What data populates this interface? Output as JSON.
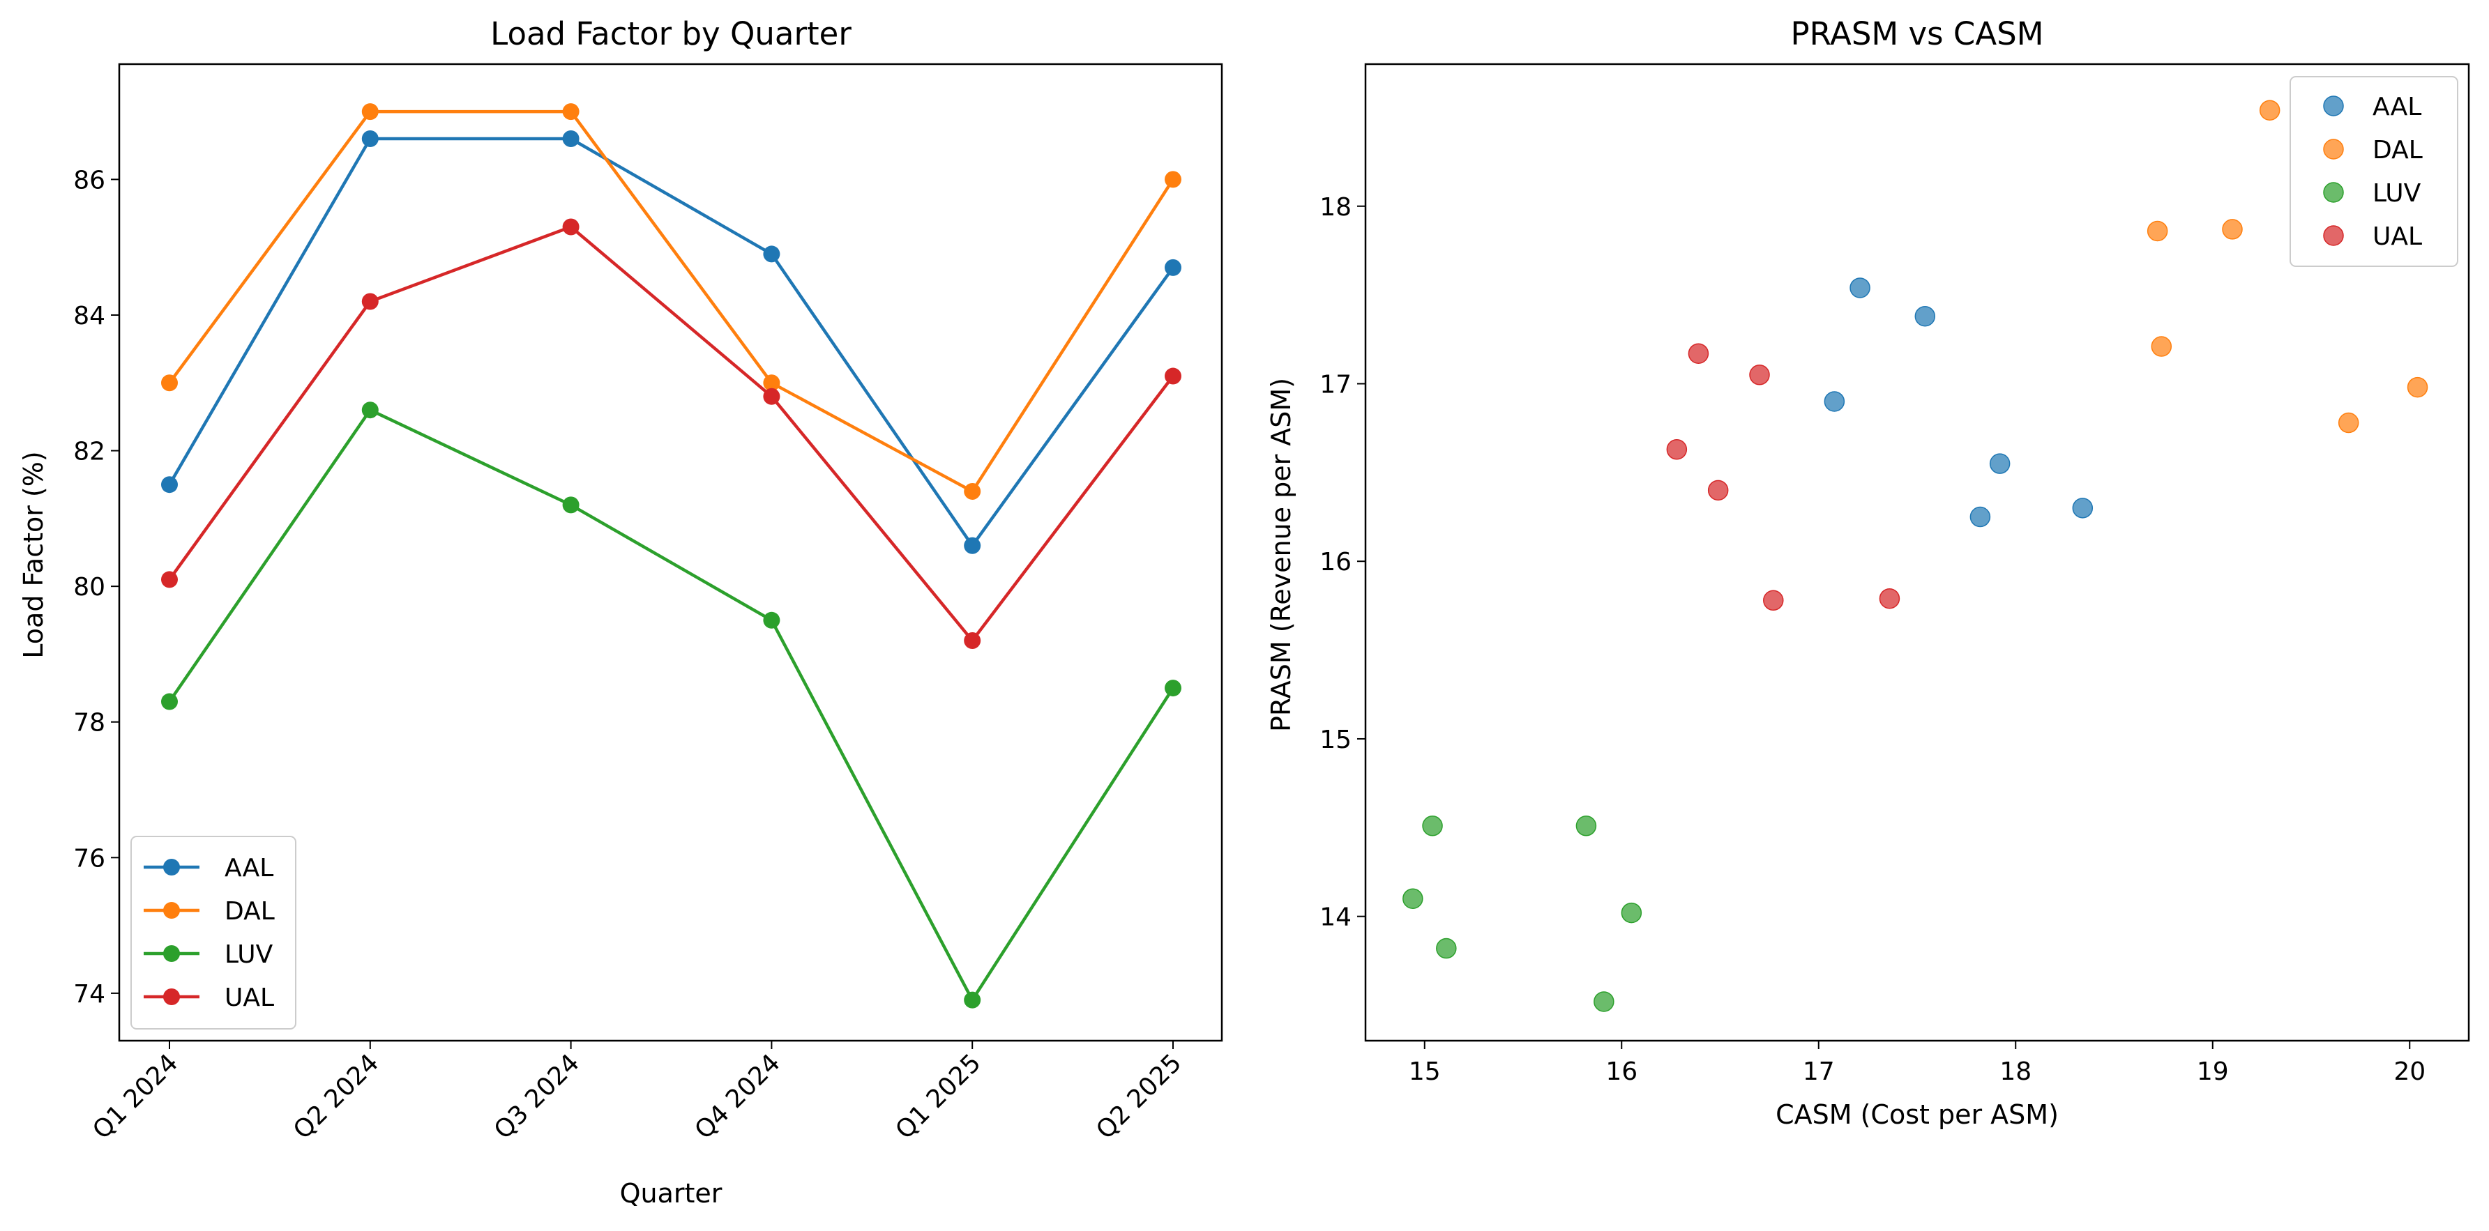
{
  "chart_data": [
    {
      "type": "line",
      "title": "Load Factor by Quarter",
      "xlabel": "Quarter",
      "ylabel": "Load Factor (%)",
      "categories": [
        "Q1 2024",
        "Q2 2024",
        "Q3 2024",
        "Q4 2024",
        "Q1 2025",
        "Q2 2025"
      ],
      "yticks": [
        74,
        76,
        78,
        80,
        82,
        84,
        86
      ],
      "ylim": [
        73.3,
        87.7
      ],
      "grid": false,
      "legend": "lower left",
      "series": [
        {
          "name": "AAL",
          "color": "#1f77b4",
          "values": [
            81.5,
            86.6,
            86.6,
            84.9,
            80.6,
            84.7
          ]
        },
        {
          "name": "DAL",
          "color": "#ff7f0e",
          "values": [
            83.0,
            87.0,
            87.0,
            83.0,
            81.4,
            86.0
          ]
        },
        {
          "name": "LUV",
          "color": "#2ca02c",
          "values": [
            78.3,
            82.6,
            81.2,
            79.5,
            73.9,
            78.5
          ]
        },
        {
          "name": "UAL",
          "color": "#d62728",
          "values": [
            80.1,
            84.2,
            85.3,
            82.8,
            79.2,
            83.1
          ]
        }
      ]
    },
    {
      "type": "scatter",
      "title": "PRASM vs CASM",
      "xlabel": "CASM (Cost per ASM)",
      "ylabel": "PRASM (Revenue per ASM)",
      "xticks": [
        15,
        16,
        17,
        18,
        19,
        20
      ],
      "yticks": [
        14,
        15,
        16,
        17,
        18
      ],
      "xlim": [
        14.7,
        20.3
      ],
      "ylim": [
        13.3,
        18.8
      ],
      "grid": false,
      "legend": "upper right",
      "series": [
        {
          "name": "AAL",
          "color": "#1f77b4",
          "points": [
            [
              17.21,
              17.54
            ],
            [
              17.54,
              17.38
            ],
            [
              17.08,
              16.9
            ],
            [
              17.92,
              16.55
            ],
            [
              17.82,
              16.25
            ],
            [
              18.34,
              16.3
            ]
          ]
        },
        {
          "name": "DAL",
          "color": "#ff7f0e",
          "points": [
            [
              19.29,
              18.54
            ],
            [
              18.72,
              17.86
            ],
            [
              19.1,
              17.87
            ],
            [
              18.74,
              17.21
            ],
            [
              20.04,
              16.98
            ],
            [
              19.69,
              16.78
            ]
          ]
        },
        {
          "name": "LUV",
          "color": "#2ca02c",
          "points": [
            [
              15.04,
              14.51
            ],
            [
              15.82,
              14.51
            ],
            [
              14.94,
              14.1
            ],
            [
              16.05,
              14.02
            ],
            [
              15.11,
              13.82
            ],
            [
              15.91,
              13.52
            ]
          ]
        },
        {
          "name": "UAL",
          "color": "#d62728",
          "points": [
            [
              16.39,
              17.17
            ],
            [
              16.7,
              17.05
            ],
            [
              16.28,
              16.63
            ],
            [
              16.49,
              16.4
            ],
            [
              16.77,
              15.78
            ],
            [
              17.36,
              15.79
            ]
          ]
        }
      ]
    }
  ]
}
